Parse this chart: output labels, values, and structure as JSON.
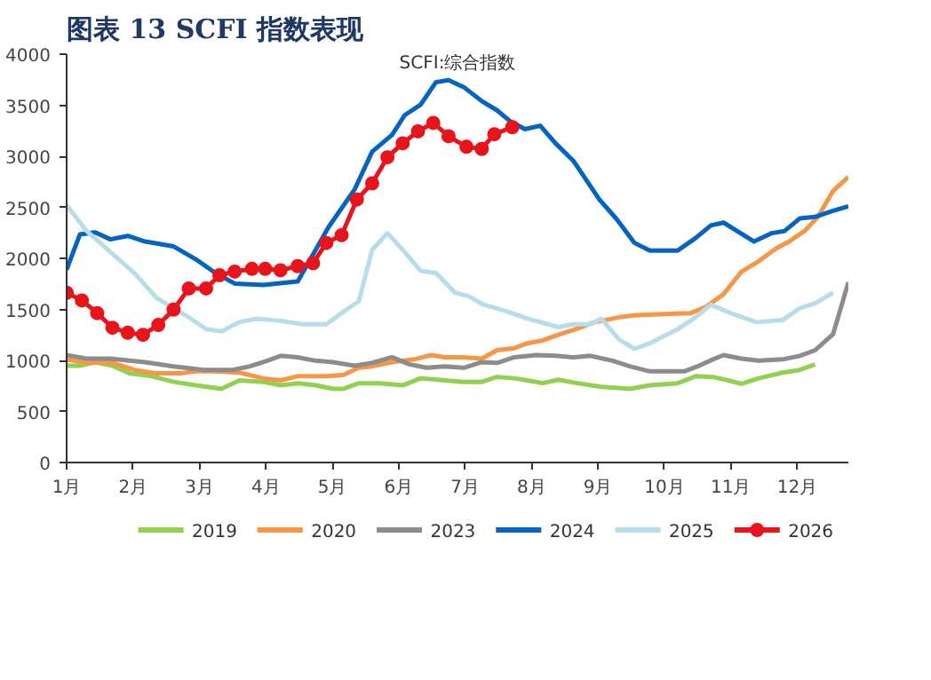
{
  "chart_data": {
    "type": "line",
    "title": "图表 13 SCFI 指数表现",
    "annotations": [
      "SCFI:综合指数"
    ],
    "xlim": [
      1,
      12.77
    ],
    "xticks": [
      {
        "value": 1,
        "label": "1月"
      },
      {
        "value": 2,
        "label": "2月"
      },
      {
        "value": 3,
        "label": "3月"
      },
      {
        "value": 4,
        "label": "4月"
      },
      {
        "value": 5,
        "label": "5月"
      },
      {
        "value": 6,
        "label": "6月"
      },
      {
        "value": 7,
        "label": "7月"
      },
      {
        "value": 8,
        "label": "8月"
      },
      {
        "value": 9,
        "label": "9月"
      },
      {
        "value": 10,
        "label": "10月"
      },
      {
        "value": 11,
        "label": "11月"
      },
      {
        "value": 12,
        "label": "12月"
      }
    ],
    "ylim": [
      0,
      4000
    ],
    "yticks": [
      0,
      500,
      1000,
      1500,
      2000,
      2500,
      3000,
      3500,
      4000
    ],
    "legend": "bottom",
    "line_style": "solid",
    "series": [
      {
        "name": "2019",
        "color": "#92d050",
        "x": [
          1,
          1.2,
          1.43,
          1.69,
          1.95,
          2.28,
          2.61,
          2.94,
          3.33,
          3.6,
          3.96,
          4.22,
          4.48,
          4.75,
          5.01,
          5.17,
          5.4,
          5.7,
          6.06,
          6.33,
          6.59,
          6.98,
          7.25,
          7.48,
          7.74,
          7.94,
          8.17,
          8.4,
          8.69,
          9.05,
          9.48,
          9.78,
          10.2,
          10.47,
          10.73,
          10.96,
          11.16,
          11.42,
          11.78,
          12.04,
          12.27
        ],
        "values": [
          948,
          948,
          983,
          948,
          873,
          845,
          790,
          756,
          722,
          804,
          790,
          756,
          777,
          756,
          722,
          722,
          777,
          777,
          756,
          825,
          811,
          790,
          790,
          838,
          825,
          804,
          777,
          811,
          777,
          742,
          722,
          756,
          777,
          845,
          838,
          804,
          770,
          825,
          880,
          907,
          962
        ]
      },
      {
        "name": "2020",
        "color": "#f79646",
        "x": [
          1,
          1.3,
          1.66,
          2.02,
          2.35,
          2.71,
          2.94,
          3.24,
          3.6,
          3.96,
          4.22,
          4.48,
          4.91,
          5.17,
          5.4,
          5.6,
          5.9,
          6.23,
          6.49,
          6.69,
          6.95,
          7.25,
          7.48,
          7.74,
          7.94,
          8.17,
          8.43,
          8.66,
          8.95,
          9.32,
          9.58,
          10.11,
          10.4,
          10.63,
          10.89,
          11.16,
          11.39,
          11.68,
          11.88,
          12.11,
          12.31,
          12.54,
          12.77
        ],
        "values": [
          1010,
          976,
          983,
          907,
          873,
          873,
          893,
          893,
          880,
          825,
          804,
          845,
          845,
          859,
          928,
          942,
          983,
          1010,
          1052,
          1031,
          1031,
          1017,
          1100,
          1120,
          1168,
          1196,
          1258,
          1306,
          1375,
          1423,
          1443,
          1457,
          1464,
          1526,
          1649,
          1869,
          1959,
          2096,
          2165,
          2268,
          2405,
          2660,
          2797
        ]
      },
      {
        "name": "2023",
        "color": "#8c8c8c",
        "x": [
          1,
          1.3,
          1.66,
          2.18,
          2.61,
          3.07,
          3.5,
          3.76,
          4.02,
          4.22,
          4.48,
          4.75,
          5.01,
          5.34,
          5.6,
          5.9,
          6.16,
          6.42,
          6.69,
          6.98,
          7.25,
          7.48,
          7.74,
          8.07,
          8.36,
          8.63,
          8.89,
          9.22,
          9.48,
          9.78,
          10.3,
          10.5,
          10.73,
          10.89,
          11.16,
          11.42,
          11.78,
          12.04,
          12.27,
          12.54,
          12.77
        ],
        "values": [
          1052,
          1017,
          1017,
          983,
          942,
          907,
          907,
          942,
          997,
          1045,
          1031,
          997,
          983,
          948,
          976,
          1031,
          962,
          928,
          942,
          928,
          983,
          976,
          1031,
          1052,
          1045,
          1031,
          1045,
          997,
          942,
          893,
          893,
          942,
          1010,
          1052,
          1017,
          997,
          1010,
          1045,
          1100,
          1258,
          1766
        ]
      },
      {
        "name": "2024",
        "color": "#0563c1",
        "x": [
          1,
          1.2,
          1.43,
          1.66,
          1.92,
          2.18,
          2.61,
          2.94,
          3.24,
          3.53,
          3.96,
          4.48,
          4.94,
          5.34,
          5.6,
          5.9,
          6.09,
          6.33,
          6.56,
          6.75,
          6.98,
          7.25,
          7.48,
          7.67,
          7.9,
          8.13,
          8.36,
          8.63,
          9.02,
          9.28,
          9.55,
          9.78,
          10.2,
          10.47,
          10.7,
          10.89,
          11.35,
          11.62,
          11.81,
          12.04,
          12.27,
          12.51,
          12.77
        ],
        "values": [
          1890,
          2234,
          2254,
          2186,
          2220,
          2165,
          2117,
          1993,
          1856,
          1753,
          1739,
          1773,
          2302,
          2680,
          3045,
          3210,
          3402,
          3505,
          3725,
          3746,
          3677,
          3540,
          3450,
          3347,
          3265,
          3299,
          3127,
          2955,
          2577,
          2385,
          2151,
          2076,
          2076,
          2199,
          2323,
          2350,
          2165,
          2247,
          2268,
          2392,
          2406,
          2460,
          2509
        ]
      },
      {
        "name": "2025",
        "color": "#b7dde8",
        "x": [
          1,
          1.3,
          1.66,
          2.02,
          2.35,
          2.61,
          2.87,
          3.1,
          3.33,
          3.6,
          3.86,
          4.22,
          4.55,
          4.91,
          5.17,
          5.4,
          5.6,
          5.83,
          6.09,
          6.33,
          6.56,
          6.85,
          7.05,
          7.28,
          7.64,
          7.94,
          8.4,
          8.63,
          8.89,
          9.05,
          9.32,
          9.55,
          9.78,
          10.2,
          10.47,
          10.7,
          10.99,
          11.39,
          11.78,
          12.04,
          12.27,
          12.54
        ],
        "values": [
          2522,
          2268,
          2062,
          1856,
          1615,
          1512,
          1409,
          1306,
          1285,
          1375,
          1409,
          1388,
          1354,
          1354,
          1478,
          1581,
          2083,
          2247,
          2062,
          1876,
          1856,
          1663,
          1629,
          1546,
          1478,
          1409,
          1326,
          1354,
          1354,
          1409,
          1203,
          1113,
          1168,
          1306,
          1423,
          1546,
          1464,
          1375,
          1395,
          1512,
          1560,
          1663
        ]
      },
      {
        "name": "2026",
        "color": "#e8141c",
        "marker": "circle",
        "x": [
          1,
          1.23,
          1.46,
          1.69,
          1.92,
          2.15,
          2.38,
          2.61,
          2.84,
          3.1,
          3.3,
          3.53,
          3.79,
          3.99,
          4.22,
          4.48,
          4.71,
          4.91,
          5.14,
          5.37,
          5.6,
          5.83,
          6.06,
          6.29,
          6.52,
          6.75,
          7.02,
          7.25,
          7.44,
          7.71
        ],
        "values": [
          1663,
          1588,
          1464,
          1320,
          1272,
          1251,
          1347,
          1498,
          1705,
          1705,
          1835,
          1870,
          1897,
          1897,
          1883,
          1924,
          1952,
          2151,
          2227,
          2577,
          2735,
          2990,
          3127,
          3244,
          3327,
          3196,
          3093,
          3072,
          3216,
          3285
        ]
      }
    ]
  }
}
